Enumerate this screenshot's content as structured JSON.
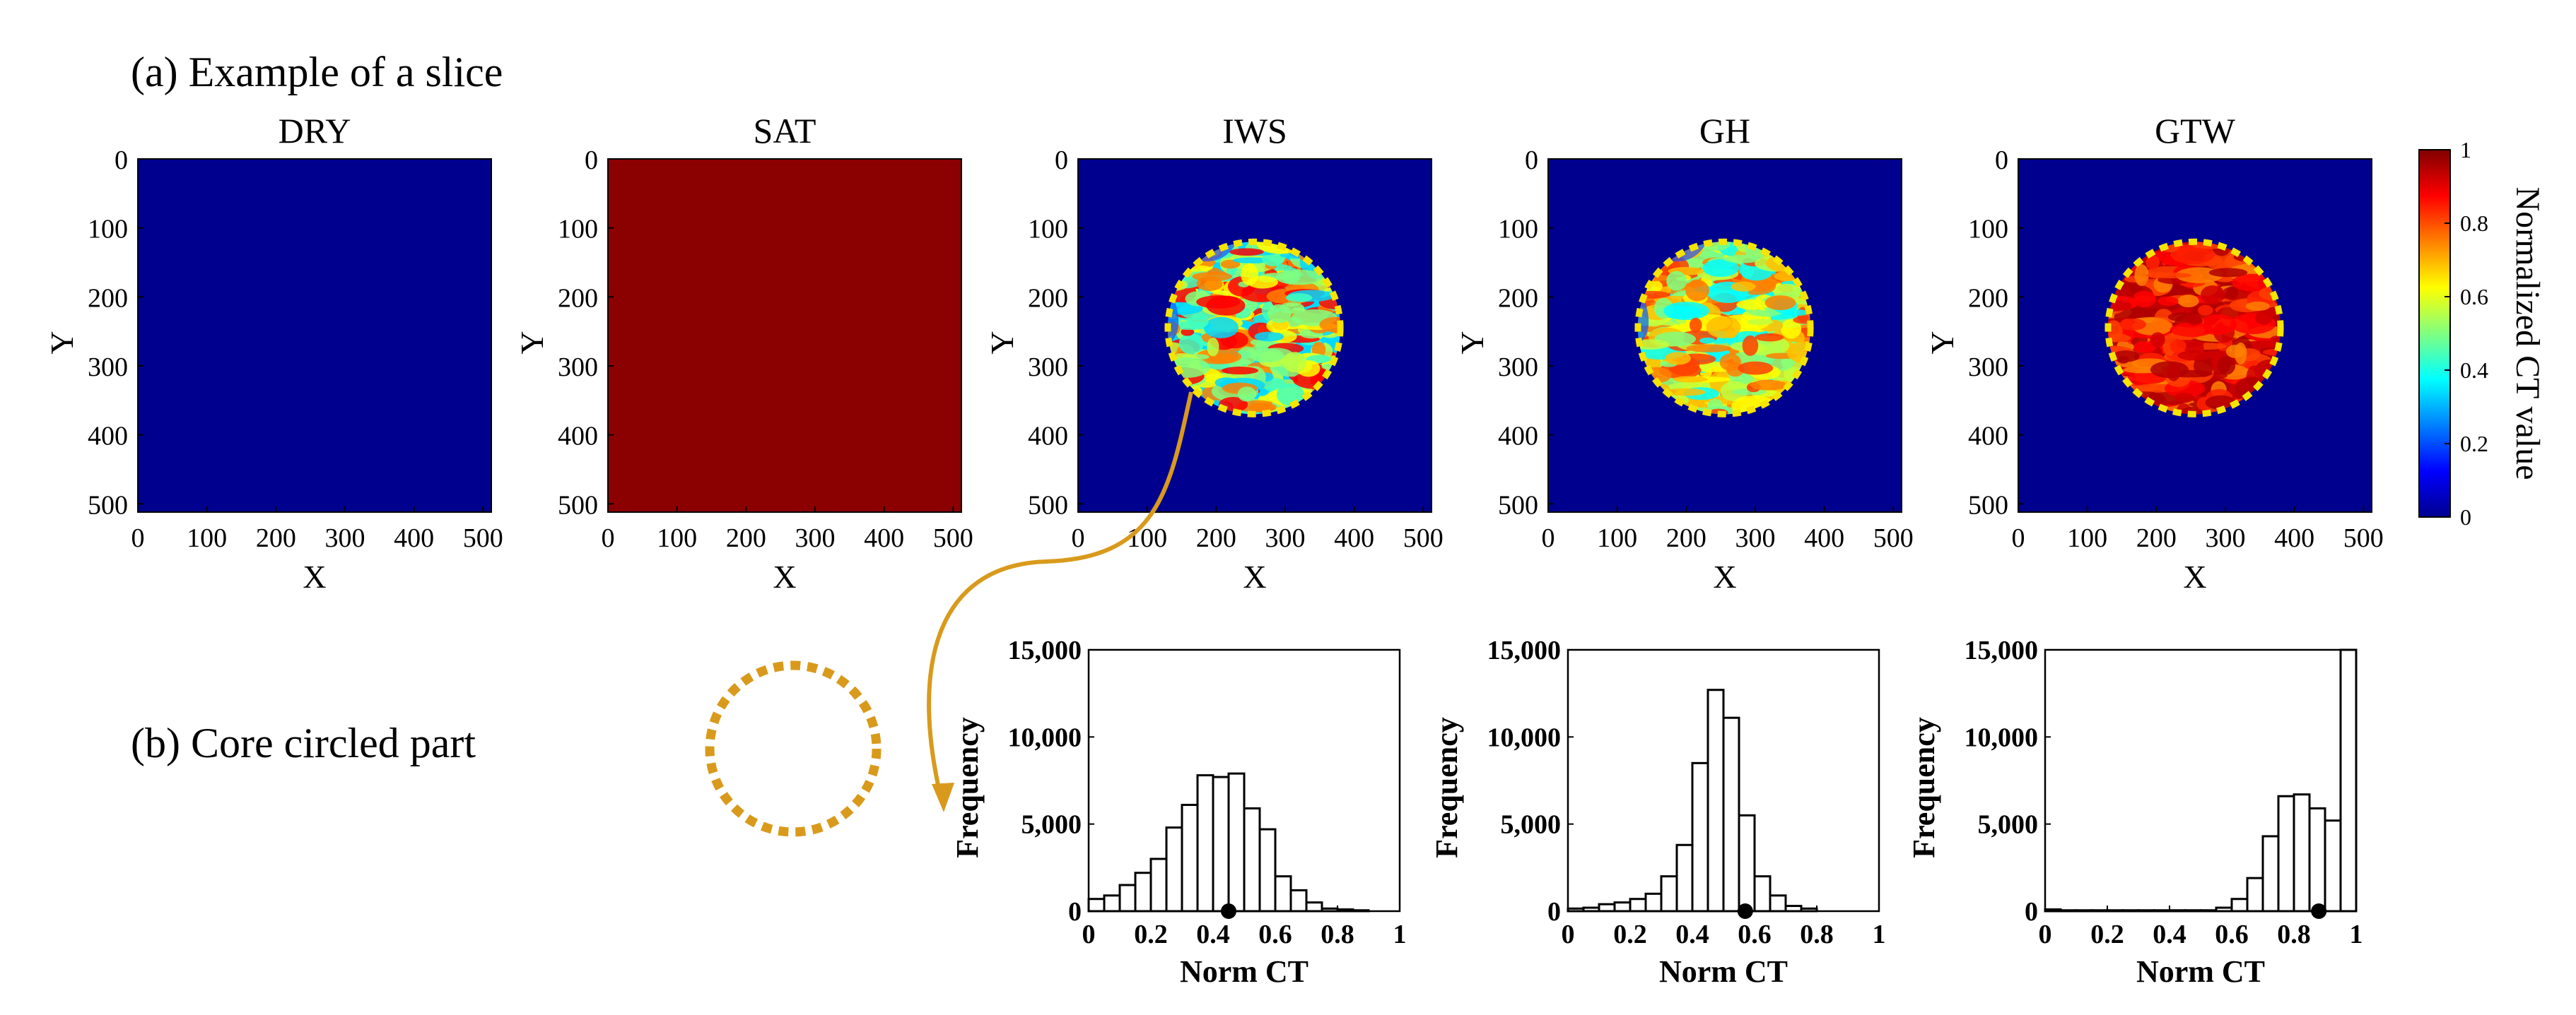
{
  "section_a": {
    "label": "(a) Example of a slice"
  },
  "section_b": {
    "label": "(b) Core circled part"
  },
  "slices": {
    "xlabel": "X",
    "ylabel": "Y",
    "xticks": [
      0,
      100,
      200,
      300,
      400,
      500
    ],
    "yticks": [
      0,
      100,
      200,
      300,
      400,
      500
    ],
    "xlim": [
      0,
      512
    ],
    "ylim": [
      0,
      512
    ],
    "panels": [
      {
        "title": "DRY",
        "background": "#00008f",
        "core": null
      },
      {
        "title": "SAT",
        "background": "#8b0000",
        "core": null
      },
      {
        "title": "IWS",
        "background": "#00008f",
        "core": {
          "cx": 255,
          "cy": 245,
          "r": 125,
          "palette": [
            "#00d9ff",
            "#40ffc0",
            "#80ff80",
            "#c0ff40",
            "#ffff00",
            "#ff8000",
            "#ff0000"
          ]
        }
      },
      {
        "title": "GH",
        "background": "#00008f",
        "core": {
          "cx": 255,
          "cy": 245,
          "r": 125,
          "palette": [
            "#80ff80",
            "#c0ff40",
            "#ffff00",
            "#ffc000",
            "#ff8000",
            "#ff4000",
            "#00ffff"
          ]
        }
      },
      {
        "title": "GTW",
        "background": "#00008f",
        "core": {
          "cx": 255,
          "cy": 245,
          "r": 125,
          "palette": [
            "#b00000",
            "#d00000",
            "#ff0000",
            "#ff4000",
            "#ff8000",
            "#c00000",
            "#ff2000"
          ]
        }
      }
    ]
  },
  "colorbar": {
    "label": "Normalized CT value",
    "ticks": [
      0,
      0.2,
      0.4,
      0.6,
      0.8,
      1
    ],
    "tick_labels": [
      "0",
      "0.2",
      "0.4",
      "0.6",
      "0.8",
      "1"
    ],
    "colors": [
      "#00008f",
      "#0000ff",
      "#0080ff",
      "#00ffff",
      "#80ff80",
      "#ffff00",
      "#ff8000",
      "#ff0000",
      "#800000"
    ]
  },
  "accent_color": "#d99a1c",
  "chart_data": [
    {
      "type": "bar",
      "panel": "IWS",
      "xlabel": "Norm CT",
      "ylabel": "Frequency",
      "xlim": [
        0,
        1
      ],
      "ylim": [
        0,
        15000
      ],
      "xticks": [
        "0",
        "0.2",
        "0.4",
        "0.6",
        "0.8",
        "1"
      ],
      "yticks": [
        "0",
        "5,000",
        "10,000",
        "15,000"
      ],
      "bin_width": 0.05,
      "bin_starts": [
        0,
        0.05,
        0.1,
        0.15,
        0.2,
        0.25,
        0.3,
        0.35,
        0.4,
        0.45,
        0.5,
        0.55,
        0.6,
        0.65,
        0.7,
        0.75,
        0.8,
        0.85,
        0.9
      ],
      "values": [
        700,
        900,
        1500,
        2200,
        3000,
        4800,
        6100,
        7800,
        7700,
        7900,
        5900,
        4700,
        2000,
        1200,
        500,
        150,
        100,
        50,
        0
      ],
      "mean_marker": 0.45
    },
    {
      "type": "bar",
      "panel": "GH",
      "xlabel": "Norm CT",
      "ylabel": "Frequency",
      "xlim": [
        0,
        1
      ],
      "ylim": [
        0,
        15000
      ],
      "xticks": [
        "0",
        "0.2",
        "0.4",
        "0.6",
        "0.8",
        "1"
      ],
      "yticks": [
        "0",
        "5,000",
        "10,000",
        "15,000"
      ],
      "bin_width": 0.05,
      "bin_starts": [
        0,
        0.05,
        0.1,
        0.15,
        0.2,
        0.25,
        0.3,
        0.35,
        0.4,
        0.45,
        0.5,
        0.55,
        0.6,
        0.65,
        0.7,
        0.75,
        0.8,
        0.85,
        0.9
      ],
      "values": [
        150,
        200,
        400,
        500,
        700,
        1000,
        2000,
        3800,
        8500,
        12700,
        11100,
        5500,
        2000,
        900,
        300,
        150,
        0,
        0,
        0
      ],
      "mean_marker": 0.57
    },
    {
      "type": "bar",
      "panel": "GTW",
      "xlabel": "Norm CT",
      "ylabel": "Frequency",
      "xlim": [
        0,
        1
      ],
      "ylim": [
        0,
        15000
      ],
      "xticks": [
        "0",
        "0.2",
        "0.4",
        "0.6",
        "0.8",
        "1"
      ],
      "yticks": [
        "0",
        "5,000",
        "10,000",
        "15,000"
      ],
      "bin_width": 0.05,
      "bin_starts": [
        0,
        0.05,
        0.1,
        0.15,
        0.2,
        0.25,
        0.3,
        0.35,
        0.4,
        0.45,
        0.5,
        0.55,
        0.6,
        0.65,
        0.7,
        0.75,
        0.8,
        0.85,
        0.9,
        0.95
      ],
      "values": [
        100,
        50,
        50,
        50,
        50,
        50,
        50,
        50,
        50,
        50,
        50,
        200,
        700,
        1900,
        4300,
        6600,
        6700,
        5900,
        5200,
        15000
      ],
      "mean_marker": 0.88
    }
  ]
}
